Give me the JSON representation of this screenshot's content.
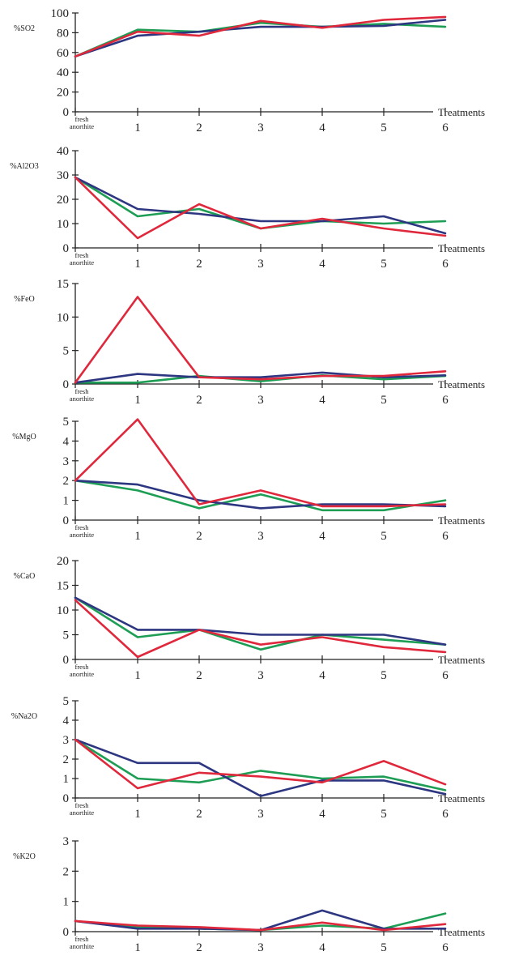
{
  "colors": {
    "green": "#1e9e55",
    "navy": "#2d3680",
    "red": "#e0283c",
    "axis": "#222222"
  },
  "chart_data": [
    {
      "type": "line",
      "ylabel": "%SO2",
      "xlabel": "Treatments",
      "categories": [
        "fresh anorthite",
        "1",
        "2",
        "3",
        "4",
        "5",
        "6"
      ],
      "ylim": [
        0,
        100
      ],
      "yticks": [
        0,
        20,
        40,
        60,
        80,
        100
      ],
      "series": [
        {
          "color": "green",
          "values": [
            56,
            83,
            81,
            90,
            86,
            89,
            86
          ]
        },
        {
          "color": "navy",
          "values": [
            56,
            77,
            81,
            86,
            86,
            87,
            93
          ]
        },
        {
          "color": "red",
          "values": [
            56,
            81,
            77,
            92,
            85,
            93,
            96
          ]
        }
      ]
    },
    {
      "type": "line",
      "ylabel": "%Al2O3",
      "xlabel": "Treatments",
      "categories": [
        "fresh anorthite",
        "1",
        "2",
        "3",
        "4",
        "5",
        "6"
      ],
      "ylim": [
        0,
        40
      ],
      "yticks": [
        0,
        10,
        20,
        30,
        40
      ],
      "series": [
        {
          "color": "green",
          "values": [
            29,
            13,
            16,
            8,
            11,
            10,
            11
          ]
        },
        {
          "color": "navy",
          "values": [
            29,
            16,
            14,
            11,
            11,
            13,
            6
          ]
        },
        {
          "color": "red",
          "values": [
            29,
            4,
            18,
            8,
            12,
            8,
            5
          ]
        }
      ]
    },
    {
      "type": "line",
      "ylabel": "%FeO",
      "xlabel": "Treatments",
      "categories": [
        "fresh anorthite",
        "1",
        "2",
        "3",
        "4",
        "5",
        "6"
      ],
      "ylim": [
        0,
        15
      ],
      "yticks": [
        0,
        5,
        10,
        15
      ],
      "series": [
        {
          "color": "green",
          "values": [
            0.2,
            0.2,
            1.2,
            0.4,
            1.3,
            0.7,
            1.2
          ]
        },
        {
          "color": "navy",
          "values": [
            0.2,
            1.5,
            1.0,
            1.0,
            1.7,
            1.0,
            1.3
          ]
        },
        {
          "color": "red",
          "values": [
            0.2,
            13,
            1.0,
            0.7,
            1.2,
            1.2,
            1.9
          ]
        }
      ]
    },
    {
      "type": "line",
      "ylabel": "%MgO",
      "xlabel": "Treatments",
      "categories": [
        "fresh anorthite",
        "1",
        "2",
        "3",
        "4",
        "5",
        "6"
      ],
      "ylim": [
        0,
        5
      ],
      "yticks": [
        0,
        1,
        2,
        3,
        4,
        5
      ],
      "series": [
        {
          "color": "green",
          "values": [
            2.0,
            1.5,
            0.6,
            1.3,
            0.5,
            0.5,
            1.0
          ]
        },
        {
          "color": "navy",
          "values": [
            2.0,
            1.8,
            1.0,
            0.6,
            0.8,
            0.8,
            0.7
          ]
        },
        {
          "color": "red",
          "values": [
            2.0,
            5.1,
            0.8,
            1.5,
            0.7,
            0.7,
            0.8
          ]
        }
      ]
    },
    {
      "type": "line",
      "ylabel": "%CaO",
      "xlabel": "Treatments",
      "categories": [
        "fresh anorthite",
        "1",
        "2",
        "3",
        "4",
        "5",
        "6"
      ],
      "ylim": [
        0,
        20
      ],
      "yticks": [
        0,
        5,
        10,
        15,
        20
      ],
      "series": [
        {
          "color": "green",
          "values": [
            12.5,
            4.5,
            6,
            2,
            5,
            4,
            3
          ]
        },
        {
          "color": "navy",
          "values": [
            12.5,
            6,
            6,
            5,
            5,
            5,
            3
          ]
        },
        {
          "color": "red",
          "values": [
            12,
            0.5,
            6,
            3,
            4.5,
            2.5,
            1.5
          ]
        }
      ]
    },
    {
      "type": "line",
      "ylabel": "%Na2O",
      "xlabel": "Treatments",
      "categories": [
        "fresh anorthite",
        "1",
        "2",
        "3",
        "4",
        "5",
        "6"
      ],
      "ylim": [
        0,
        5
      ],
      "yticks": [
        0,
        1,
        2,
        3,
        4,
        5
      ],
      "series": [
        {
          "color": "green",
          "values": [
            3.0,
            1.0,
            0.8,
            1.4,
            1.0,
            1.1,
            0.4
          ]
        },
        {
          "color": "navy",
          "values": [
            3.0,
            1.8,
            1.8,
            0.1,
            0.9,
            0.9,
            0.2
          ]
        },
        {
          "color": "red",
          "values": [
            3.0,
            0.5,
            1.3,
            1.1,
            0.8,
            1.9,
            0.7
          ]
        }
      ]
    },
    {
      "type": "line",
      "ylabel": "%K2O",
      "xlabel": "Treatments",
      "categories": [
        "fresh anorthite",
        "1",
        "2",
        "3",
        "4",
        "5",
        "6"
      ],
      "ylim": [
        0,
        3
      ],
      "yticks": [
        0,
        1,
        2,
        3
      ],
      "series": [
        {
          "color": "green",
          "values": [
            0.35,
            0.15,
            0.1,
            0.05,
            0.2,
            0.1,
            0.6
          ]
        },
        {
          "color": "navy",
          "values": [
            0.35,
            0.1,
            0.1,
            0.05,
            0.7,
            0.1,
            0.1
          ]
        },
        {
          "color": "red",
          "values": [
            0.35,
            0.2,
            0.15,
            0.05,
            0.3,
            0.05,
            0.25
          ]
        }
      ]
    }
  ]
}
